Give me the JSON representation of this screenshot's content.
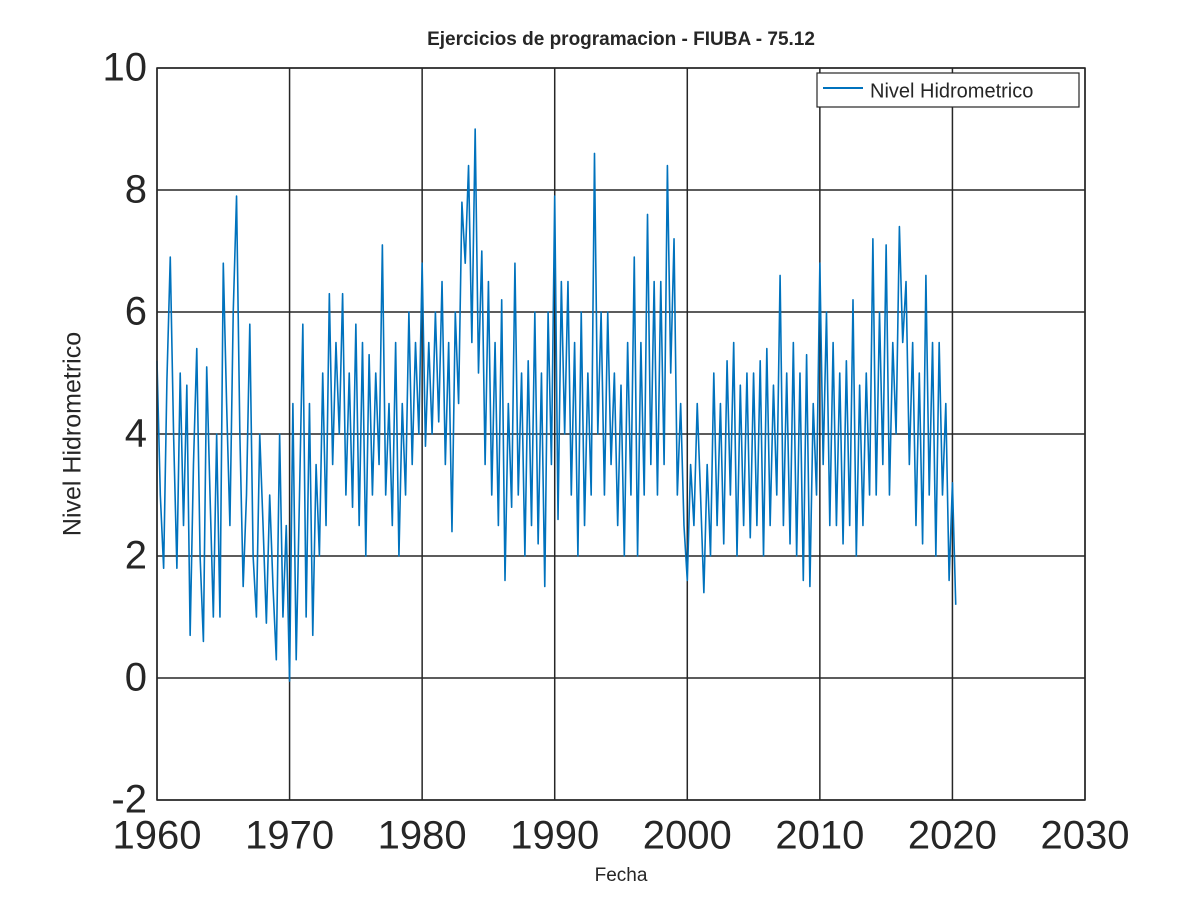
{
  "chart_data": {
    "type": "line",
    "title": "Ejercicios de programacion - FIUBA - 75.12",
    "x_label": "Fecha",
    "y_label": "Nivel Hidrometrico",
    "xlim": [
      1960,
      2030
    ],
    "xticks": [
      1960,
      1970,
      1980,
      1990,
      2000,
      2010,
      2020,
      2030
    ],
    "ylim": [
      -2,
      10
    ],
    "yticks": [
      -2,
      0,
      2,
      4,
      6,
      8,
      10
    ],
    "grid": true,
    "legend": "top-right",
    "x": [
      1960,
      1960.25,
      1960.5,
      1960.75,
      1961,
      1961.25,
      1961.5,
      1961.75,
      1962,
      1962.25,
      1962.5,
      1962.75,
      1963,
      1963.25,
      1963.5,
      1963.75,
      1964,
      1964.25,
      1964.5,
      1964.75,
      1965,
      1965.25,
      1965.5,
      1965.75,
      1966,
      1966.25,
      1966.5,
      1966.75,
      1967,
      1967.25,
      1967.5,
      1967.75,
      1968,
      1968.25,
      1968.5,
      1968.75,
      1969,
      1969.25,
      1969.5,
      1969.75,
      1970,
      1970.25,
      1970.5,
      1970.75,
      1971,
      1971.25,
      1971.5,
      1971.75,
      1972,
      1972.25,
      1972.5,
      1972.75,
      1973,
      1973.25,
      1973.5,
      1973.75,
      1974,
      1974.25,
      1974.5,
      1974.75,
      1975,
      1975.25,
      1975.5,
      1975.75,
      1976,
      1976.25,
      1976.5,
      1976.75,
      1977,
      1977.25,
      1977.5,
      1977.75,
      1978,
      1978.25,
      1978.5,
      1978.75,
      1979,
      1979.25,
      1979.5,
      1979.75,
      1980,
      1980.25,
      1980.5,
      1980.75,
      1981,
      1981.25,
      1981.5,
      1981.75,
      1982,
      1982.25,
      1982.5,
      1982.75,
      1983,
      1983.25,
      1983.5,
      1983.75,
      1984,
      1984.25,
      1984.5,
      1984.75,
      1985,
      1985.25,
      1985.5,
      1985.75,
      1986,
      1986.25,
      1986.5,
      1986.75,
      1987,
      1987.25,
      1987.5,
      1987.75,
      1988,
      1988.25,
      1988.5,
      1988.75,
      1989,
      1989.25,
      1989.5,
      1989.75,
      1990,
      1990.25,
      1990.5,
      1990.75,
      1991,
      1991.25,
      1991.5,
      1991.75,
      1992,
      1992.25,
      1992.5,
      1992.75,
      1993,
      1993.25,
      1993.5,
      1993.75,
      1994,
      1994.25,
      1994.5,
      1994.75,
      1995,
      1995.25,
      1995.5,
      1995.75,
      1996,
      1996.25,
      1996.5,
      1996.75,
      1997,
      1997.25,
      1997.5,
      1997.75,
      1998,
      1998.25,
      1998.5,
      1998.75,
      1999,
      1999.25,
      1999.5,
      1999.75,
      2000,
      2000.25,
      2000.5,
      2000.75,
      2001,
      2001.25,
      2001.5,
      2001.75,
      2002,
      2002.25,
      2002.5,
      2002.75,
      2003,
      2003.25,
      2003.5,
      2003.75,
      2004,
      2004.25,
      2004.5,
      2004.75,
      2005,
      2005.25,
      2005.5,
      2005.75,
      2006,
      2006.25,
      2006.5,
      2006.75,
      2007,
      2007.25,
      2007.5,
      2007.75,
      2008,
      2008.25,
      2008.5,
      2008.75,
      2009,
      2009.25,
      2009.5,
      2009.75,
      2010,
      2010.25,
      2010.5,
      2010.75,
      2011,
      2011.25,
      2011.5,
      2011.75,
      2012,
      2012.25,
      2012.5,
      2012.75,
      2013,
      2013.25,
      2013.5,
      2013.75,
      2014,
      2014.25,
      2014.5,
      2014.75,
      2015,
      2015.25,
      2015.5,
      2015.75,
      2016,
      2016.25,
      2016.5,
      2016.75,
      2017,
      2017.25,
      2017.5,
      2017.75,
      2018,
      2018.25,
      2018.5,
      2018.75,
      2019,
      2019.25,
      2019.5,
      2019.75,
      2020,
      2020.25
    ],
    "series": [
      {
        "name": "Nivel Hidrometrico",
        "color": "#0072bd",
        "values": [
          5.2,
          3.0,
          1.8,
          4.9,
          6.9,
          4.0,
          1.8,
          5.0,
          2.5,
          4.8,
          0.7,
          3.5,
          5.4,
          2.0,
          0.6,
          5.1,
          3.0,
          1.0,
          4.0,
          1.0,
          6.8,
          4.5,
          2.5,
          6.0,
          7.9,
          4.0,
          1.5,
          3.0,
          5.8,
          2.0,
          1.0,
          4.0,
          2.5,
          0.9,
          3.0,
          1.5,
          0.3,
          4.0,
          1.0,
          2.5,
          -0.05,
          4.5,
          0.3,
          3.0,
          5.8,
          1.0,
          4.5,
          0.7,
          3.5,
          2.0,
          5.0,
          2.5,
          6.3,
          3.5,
          5.5,
          4.0,
          6.3,
          3.0,
          5.0,
          2.8,
          5.8,
          2.5,
          5.5,
          2.0,
          5.3,
          3.0,
          5.0,
          3.5,
          7.1,
          3.0,
          4.5,
          2.5,
          5.5,
          2.0,
          4.5,
          3.0,
          6.0,
          3.5,
          5.5,
          4.0,
          6.8,
          3.8,
          5.5,
          4.0,
          6.0,
          4.2,
          6.5,
          3.5,
          5.5,
          2.4,
          6.0,
          4.5,
          7.8,
          6.8,
          8.4,
          5.5,
          9.0,
          5.0,
          7.0,
          3.5,
          6.5,
          3.0,
          5.5,
          2.5,
          6.2,
          1.6,
          4.5,
          2.8,
          6.8,
          3.0,
          5.0,
          2.0,
          5.2,
          2.5,
          6.0,
          2.2,
          5.0,
          1.5,
          6.0,
          3.5,
          7.9,
          2.6,
          6.5,
          4.0,
          6.5,
          3.0,
          5.5,
          2.0,
          6.0,
          2.5,
          5.0,
          3.0,
          8.6,
          4.0,
          6.0,
          3.0,
          6.0,
          3.5,
          5.0,
          2.5,
          4.8,
          2.0,
          5.5,
          3.0,
          6.9,
          2.0,
          5.5,
          3.0,
          7.6,
          3.5,
          6.5,
          3.0,
          6.5,
          3.5,
          8.4,
          5.0,
          7.2,
          3.0,
          4.5,
          2.5,
          1.6,
          3.5,
          2.5,
          4.5,
          3.0,
          1.4,
          3.5,
          2.0,
          5.0,
          2.5,
          4.5,
          2.2,
          5.2,
          3.0,
          5.5,
          2.0,
          4.8,
          2.5,
          5.0,
          2.3,
          5.0,
          2.5,
          5.2,
          2.0,
          5.4,
          2.5,
          4.8,
          3.0,
          6.6,
          2.5,
          5.0,
          2.2,
          5.5,
          2.0,
          5.0,
          1.6,
          5.3,
          1.5,
          4.5,
          3.0,
          6.8,
          3.5,
          6.0,
          2.5,
          5.5,
          2.5,
          5.0,
          2.2,
          5.2,
          2.5,
          6.2,
          2.0,
          4.8,
          2.5,
          5.0,
          3.0,
          7.2,
          3.0,
          6.0,
          3.5,
          7.1,
          3.0,
          5.5,
          4.0,
          7.4,
          5.5,
          6.5,
          3.5,
          5.5,
          2.5,
          5.0,
          2.2,
          6.6,
          3.0,
          5.5,
          2.0,
          5.5,
          3.0,
          4.5,
          1.6,
          3.2,
          1.2
        ]
      }
    ]
  }
}
